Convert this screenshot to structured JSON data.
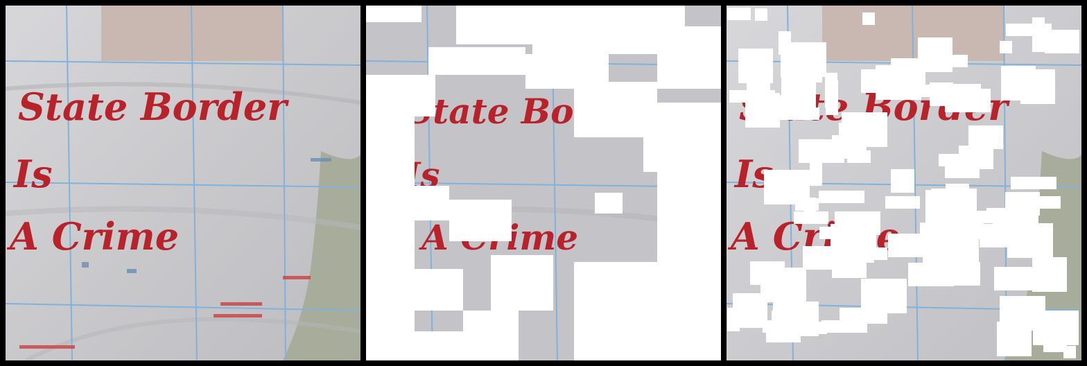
{
  "panels": [
    {
      "id": "original",
      "masked": false
    },
    {
      "id": "block-masked",
      "masked": true,
      "mask_type": "large contiguous blocks"
    },
    {
      "id": "random-masked",
      "masked": true,
      "mask_type": "random scattered patches"
    }
  ],
  "caption_text": {
    "line1": "State Border",
    "line2": "Is",
    "line3": "A Crime"
  },
  "colors": {
    "fabric": "#cfcfd3",
    "ink_red": "#b8232b",
    "grid_blue": "#7fb2dd",
    "mask": "#ffffff",
    "separator": "#000000"
  }
}
